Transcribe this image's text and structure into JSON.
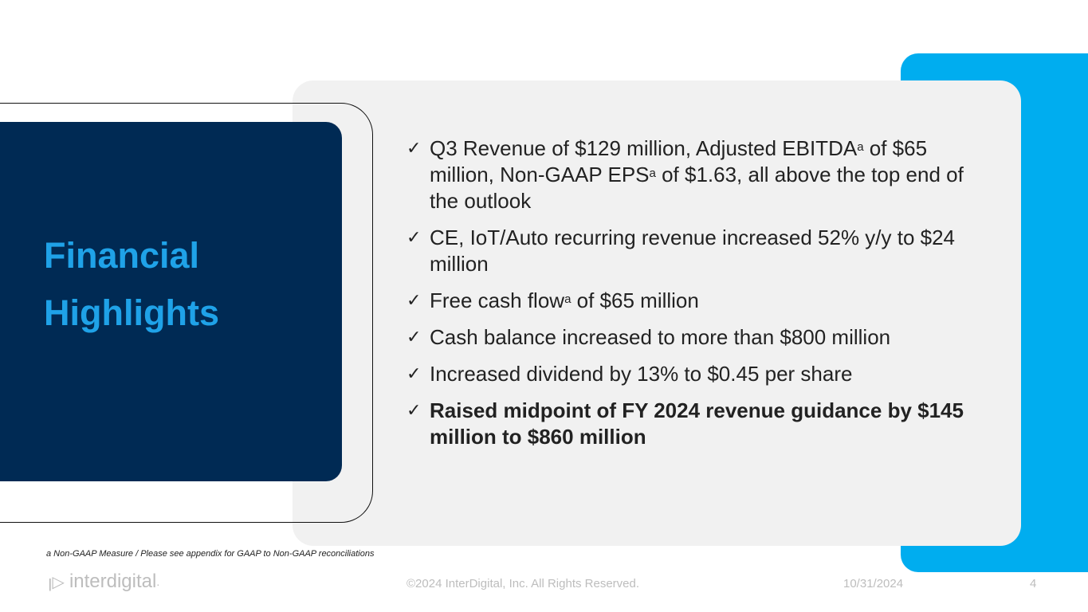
{
  "title_lines": [
    "Financial",
    "Highlights"
  ],
  "bullets": [
    {
      "parts": [
        "Q3 Revenue of $129 million, Adjusted EBITDA",
        "a",
        " of $65 million, Non-GAAP EPS",
        "a",
        " of $1.63, all above the top end of the outlook"
      ]
    },
    {
      "text": "CE, IoT/Auto recurring revenue increased 52% y/y to $24 million"
    },
    {
      "parts": [
        "Free cash flow",
        "a",
        " of $65 million"
      ]
    },
    {
      "text": "Cash balance increased to more than $800 million"
    },
    {
      "text": "Increased dividend by 13% to $0.45 per share"
    },
    {
      "text": "Raised midpoint of FY 2024 revenue guidance by $145 million to $860 million"
    }
  ],
  "check": "✓",
  "footnote": "a Non-GAAP Measure / Please see appendix for GAAP to Non-GAAP reconciliations",
  "footer": {
    "logo_text": "interdigital",
    "logo_dot": ".",
    "copyright": "©2024 InterDigital, Inc. All Rights Reserved.",
    "date": "10/31/2024",
    "page": "4"
  },
  "colors": {
    "navy": "#002a54",
    "accent": "#00adef",
    "title": "#1fa2e8",
    "panel": "#f1f1f1"
  }
}
